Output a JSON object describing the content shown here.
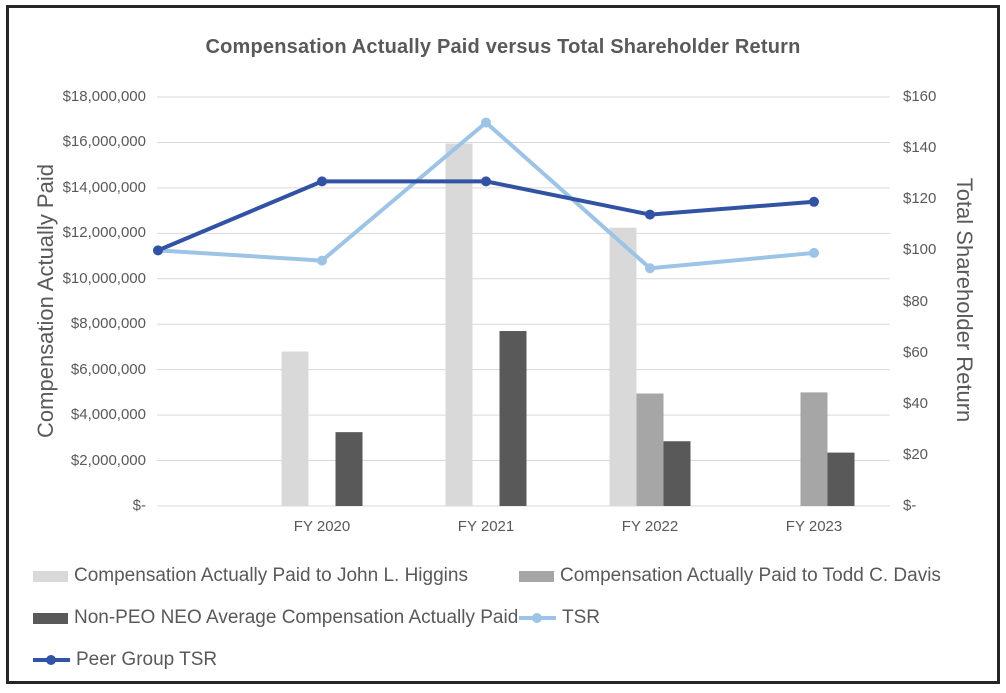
{
  "chart_data": {
    "type": "combo-bar-line",
    "title": "Compensation Actually Paid versus Total Shareholder Return",
    "left_axis": {
      "label": "Compensation Actually Paid",
      "ticks": [
        "$18,000,000",
        "$16,000,000",
        "$14,000,000",
        "$12,000,000",
        "$10,000,000",
        "$8,000,000",
        "$6,000,000",
        "$4,000,000",
        "$2,000,000",
        "$-"
      ],
      "range": [
        0,
        18000000
      ],
      "tick_step": 2000000
    },
    "right_axis": {
      "label": "Total Shareholder Return",
      "ticks": [
        "$160",
        "$140",
        "$120",
        "$100",
        "$80",
        "$60",
        "$40",
        "$20",
        "$-"
      ],
      "range": [
        0,
        160
      ],
      "tick_step": 20
    },
    "categories": [
      "FY 2020",
      "FY 2021",
      "FY 2022",
      "FY 2023"
    ],
    "line_categories": [
      "",
      "FY 2020",
      "FY 2021",
      "FY 2022",
      "FY 2023"
    ],
    "bar_series": [
      {
        "name": "Compensation Actually Paid to John L. Higgins",
        "axis": "left",
        "color": "#d9d9d9",
        "values": [
          6800000,
          15950000,
          12250000,
          null
        ]
      },
      {
        "name": "Compensation Actually Paid to Todd C. Davis",
        "axis": "left",
        "color": "#a6a6a6",
        "values": [
          null,
          null,
          4950000,
          5000000
        ]
      },
      {
        "name": "Non-PEO NEO Average Compensation Actually Paid",
        "axis": "left",
        "color": "#595959",
        "values": [
          3250000,
          7700000,
          2850000,
          2350000
        ]
      }
    ],
    "line_series": [
      {
        "name": "TSR",
        "axis": "right",
        "color": "#9dc3e6",
        "values": [
          100,
          96,
          150,
          93,
          99
        ]
      },
      {
        "name": "Peer Group TSR",
        "axis": "right",
        "color": "#3253a4",
        "values": [
          100,
          127,
          127,
          114,
          119
        ]
      }
    ],
    "grid": "horizontal",
    "gridline_color": "#d9d9d9",
    "legend_position": "bottom"
  },
  "frame": {
    "border_color": "#262626",
    "background": "#ffffff",
    "text_color": "#595959"
  }
}
